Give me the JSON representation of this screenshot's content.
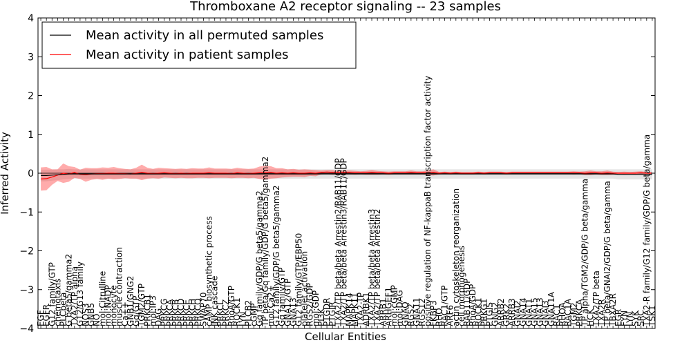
{
  "chart_data": {
    "type": "line",
    "title": "Thromboxane A2 receptor signaling -- 23 samples",
    "xlabel": "Cellular Entities",
    "ylabel": "Inferred Activity",
    "ylim": [
      -4,
      4
    ],
    "yticks": [
      -4,
      -3,
      -2,
      -1,
      0,
      1,
      2,
      3,
      4
    ],
    "grid": false,
    "legend_position": "top-left",
    "categories": [
      "EGF",
      "EGFR",
      "G12 family/GTP",
      "chemotaxis",
      "PLCbeta",
      "G beta5/gamma2",
      "TXA2/TP alpha",
      "G12/G13 family",
      "NOS3",
      "GNB5",
      "NO",
      "mol:Citrulline",
      "mol:NADP",
      "monocyte",
      "muscle contraction",
      "Ca++",
      "GNB1/GNG2",
      "Gq/GTP",
      "TGM2/GTP",
      "PRKCB1",
      "mol:IP3",
      "DAG",
      "PRKCG",
      "PRKCA",
      "PRKCB",
      "PRKCD",
      "PRKCE",
      "PRKCH",
      "PRKCQ",
      "SWAP70",
      "cAMP biosynthetic process",
      "JNK cascade",
      "PRKCI",
      "PRKCZ",
      "RhoA/GTP",
      "ROCK1",
      "LYN",
      "PLCB2",
      "cGMP",
      "Gq family/GDP/G beta5/gamma2",
      "TP beta/Gq family/GDP/G beta5/gamma2",
      "mol:Ca2+",
      "G12 family/GDP/G beta5/gamma2",
      "Gq family/GTP",
      "GNA12/GTP",
      "GNA13",
      "G12 family/GTP/EBP50",
      "platelet activation",
      "RGS2/GDP",
      "mol:GDP",
      "PI3K",
      "PTGDR",
      "PTGIR",
      "TXA2/TP beta/beta Arrestin2/RAB11/GDP",
      "TXA2/TP beta/beta Arrestin3/RAB11/GDP",
      "MAPK14",
      "MAPK11",
      "TXA2-TP",
      "ADRBK1",
      "TXA2/TP beta/beta Arrestin3",
      "TXA2/TP beta/beta Arrestin2",
      "ARRB1",
      "ARHGEF1",
      "mol:cGMP",
      "mol:DAG",
      "GNAQ",
      "RGS2",
      "GNA11",
      "RGS12",
      "positive regulation of NF-kappaB transcription factor activity",
      "FKBP3",
      "RHO",
      "RAC1/GTP",
      "ARF6",
      "actin cytoskeleton reorganization",
      "cell morphogenesis",
      "RAB11/GDP",
      "RhoA/GDP",
      "ROCK1 ",
      "PRKG1",
      "PTGIS",
      "GNG2",
      "ARRB2",
      "GRK2",
      "ARRB3",
      "GNAI2",
      "GNA14",
      "GNAT1",
      "GNA15",
      "GNA13 ",
      "GNAI3",
      "GNA11A",
      "RAC1",
      "RHOA",
      "RAC1A",
      "TGM2",
      "PRKCA ",
      "TP alpha/TGM2/GDP/G beta/gamma",
      "HCK",
      "TXA2/TP beta",
      "TXA2R",
      "TP beta/GNAI2/GDP/G beta/gamma",
      "TBXA2R",
      "EGR",
      "FYN",
      "LYN ",
      "SYK",
      "SRC",
      "TXA2-R family/G12 family/GDP/G beta/gamma",
      "TSK1"
    ],
    "series": [
      {
        "name": "Mean activity in all permuted samples",
        "color": "#000000",
        "mean": [
          -0.06,
          -0.06,
          -0.05,
          -0.04,
          -0.03,
          -0.02,
          -0.02,
          -0.02,
          -0.02,
          -0.02,
          -0.02,
          -0.02,
          -0.02,
          -0.02,
          -0.02,
          -0.02,
          -0.02,
          -0.02,
          -0.02,
          -0.02,
          -0.02,
          -0.02,
          -0.02,
          -0.02,
          -0.02,
          -0.02,
          -0.02,
          -0.02,
          -0.02,
          -0.02,
          -0.02,
          -0.02,
          -0.02,
          -0.02,
          -0.02,
          -0.02,
          -0.02,
          -0.02,
          -0.02,
          -0.02,
          -0.02,
          -0.02,
          -0.02,
          -0.02,
          -0.02,
          -0.02,
          -0.02,
          -0.02,
          -0.02,
          -0.02,
          -0.02,
          -0.02,
          -0.02,
          -0.02,
          -0.02,
          -0.02,
          -0.02,
          -0.02,
          -0.02,
          -0.02,
          -0.02,
          -0.02,
          -0.02,
          -0.02,
          -0.02,
          -0.02,
          -0.02,
          -0.02,
          -0.02,
          -0.02,
          -0.02,
          -0.02,
          -0.02,
          -0.02,
          -0.02,
          -0.02,
          -0.02,
          -0.02,
          -0.02,
          -0.02,
          -0.02,
          -0.02,
          -0.02,
          -0.02,
          -0.02,
          -0.02,
          -0.02,
          -0.02,
          -0.02,
          -0.02,
          -0.02,
          -0.02,
          -0.02,
          -0.02,
          -0.02,
          -0.02,
          -0.02,
          -0.02,
          -0.02,
          -0.02,
          -0.02,
          -0.02,
          -0.02,
          -0.03,
          -0.03,
          -0.03,
          -0.03,
          -0.03,
          -0.03,
          -0.03
        ],
        "spread": [
          0.15,
          0.15,
          0.14,
          0.14,
          0.13,
          0.13,
          0.12,
          0.12,
          0.12,
          0.12,
          0.12,
          0.12,
          0.12,
          0.12,
          0.12,
          0.12,
          0.12,
          0.12,
          0.12,
          0.12,
          0.12,
          0.12,
          0.12,
          0.12,
          0.12,
          0.12,
          0.12,
          0.12,
          0.12,
          0.12,
          0.12,
          0.12,
          0.12,
          0.12,
          0.12,
          0.12,
          0.12,
          0.12,
          0.12,
          0.12,
          0.12,
          0.12,
          0.12,
          0.12,
          0.12,
          0.12,
          0.12,
          0.12,
          0.12,
          0.12,
          0.12,
          0.12,
          0.12,
          0.12,
          0.12,
          0.12,
          0.12,
          0.12,
          0.12,
          0.12,
          0.12,
          0.12,
          0.12,
          0.12,
          0.12,
          0.12,
          0.12,
          0.12,
          0.12,
          0.12,
          0.12,
          0.12,
          0.12,
          0.12,
          0.12,
          0.12,
          0.12,
          0.12,
          0.12,
          0.12,
          0.12,
          0.12,
          0.12,
          0.12,
          0.12,
          0.12,
          0.12,
          0.12,
          0.12,
          0.12,
          0.12,
          0.12,
          0.12,
          0.12,
          0.12,
          0.12,
          0.12,
          0.12,
          0.12,
          0.12,
          0.12,
          0.12,
          0.12,
          0.13,
          0.13,
          0.13,
          0.13,
          0.13,
          0.13,
          0.13
        ]
      },
      {
        "name": "Mean activity in patient samples",
        "color": "#ff0000",
        "mean": [
          -0.15,
          -0.14,
          -0.1,
          -0.05,
          0.0,
          -0.02,
          0.02,
          -0.03,
          -0.04,
          -0.02,
          -0.01,
          -0.01,
          0.0,
          0.0,
          -0.01,
          -0.01,
          -0.02,
          0.0,
          0.02,
          0.0,
          -0.01,
          0.0,
          0.01,
          0.0,
          -0.01,
          0.0,
          -0.01,
          0.0,
          0.0,
          0.0,
          0.01,
          0.0,
          0.0,
          0.0,
          -0.01,
          0.01,
          0.0,
          -0.01,
          0.0,
          0.01,
          0.01,
          0.02,
          0.0,
          0.01,
          0.0,
          0.01,
          0.0,
          0.0,
          0.01,
          0.0,
          0.02,
          0.03,
          0.02,
          0.01,
          0.02,
          0.02,
          0.01,
          0.01,
          0.01,
          0.02,
          0.01,
          0.01,
          0.0,
          0.01,
          0.01,
          0.01,
          0.02,
          0.01,
          0.01,
          0.01,
          0.02,
          0.0,
          0.01,
          0.0,
          0.01,
          0.0,
          0.0,
          0.0,
          0.01,
          0.0,
          0.01,
          0.01,
          0.01,
          0.0,
          0.01,
          0.01,
          0.01,
          0.01,
          0.01,
          0.01,
          0.01,
          0.01,
          0.01,
          0.01,
          0.01,
          0.01,
          0.01,
          0.0,
          0.01,
          0.01,
          0.0,
          0.01,
          0.0,
          0.0,
          0.0,
          0.0,
          0.0,
          0.01,
          0.0,
          0.0
        ],
        "spread": [
          0.3,
          0.3,
          0.2,
          0.15,
          0.25,
          0.2,
          0.14,
          0.12,
          0.18,
          0.15,
          0.14,
          0.16,
          0.14,
          0.16,
          0.14,
          0.12,
          0.12,
          0.14,
          0.2,
          0.14,
          0.12,
          0.14,
          0.12,
          0.12,
          0.12,
          0.12,
          0.12,
          0.13,
          0.12,
          0.12,
          0.14,
          0.12,
          0.12,
          0.12,
          0.12,
          0.13,
          0.12,
          0.12,
          0.12,
          0.16,
          0.18,
          0.16,
          0.13,
          0.12,
          0.1,
          0.1,
          0.09,
          0.1,
          0.08,
          0.08,
          0.05,
          0.05,
          0.06,
          0.05,
          0.05,
          0.05,
          0.05,
          0.04,
          0.05,
          0.06,
          0.05,
          0.04,
          0.04,
          0.04,
          0.04,
          0.04,
          0.05,
          0.04,
          0.04,
          0.06,
          0.08,
          0.03,
          0.03,
          0.03,
          0.03,
          0.03,
          0.03,
          0.03,
          0.03,
          0.03,
          0.03,
          0.03,
          0.03,
          0.03,
          0.03,
          0.03,
          0.03,
          0.03,
          0.03,
          0.03,
          0.03,
          0.03,
          0.03,
          0.03,
          0.03,
          0.04,
          0.03,
          0.05,
          0.06,
          0.04,
          0.05,
          0.06,
          0.04,
          0.03,
          0.04,
          0.03,
          0.04,
          0.04,
          0.03,
          0.03
        ]
      }
    ]
  }
}
